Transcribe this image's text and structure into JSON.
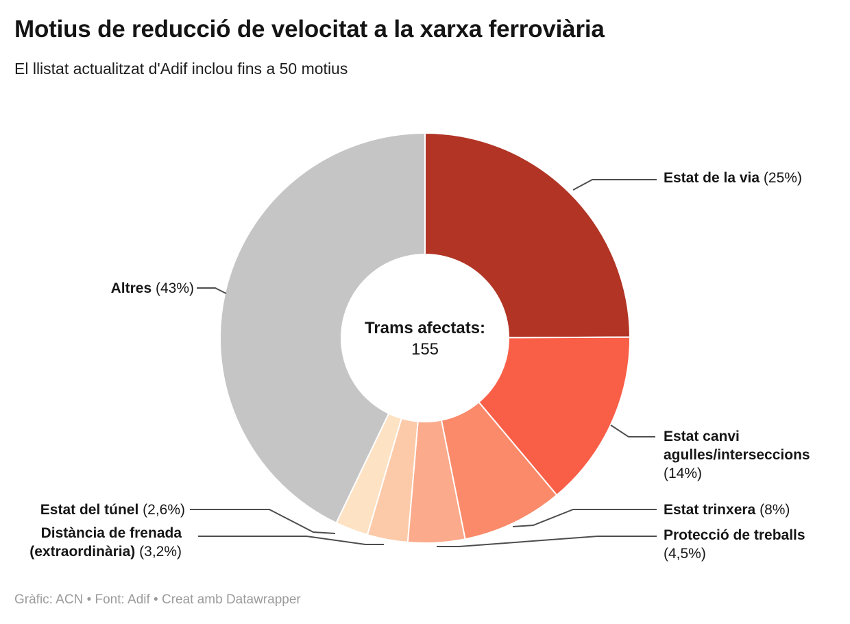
{
  "header": {
    "title": "Motius de reducció de velocitat a la xarxa ferroviària",
    "subtitle": "El llistat actualitzat d'Adif inclou fins a 50 motius"
  },
  "chart_data": {
    "type": "pie",
    "variant": "donut",
    "title": "Motius de reducció de velocitat a la xarxa ferroviària",
    "subtitle": "El llistat actualitzat d'Adif inclou fins a 50 motius",
    "center_label": "Trams afectats:",
    "center_value": "155",
    "units": "percent",
    "start_angle_deg": 0,
    "direction": "clockwise",
    "segments": [
      {
        "label": "Estat de la via",
        "pct_label": "(25%)",
        "value": 25,
        "color": "#b13425"
      },
      {
        "label": "Estat canvi agulles/interseccions",
        "pct_label": "(14%)",
        "value": 14,
        "color": "#f95e47"
      },
      {
        "label": "Estat trinxera",
        "pct_label": "(8%)",
        "value": 8,
        "color": "#fa8a6a"
      },
      {
        "label": "Protecció de treballs",
        "pct_label": "(4,5%)",
        "value": 4.5,
        "color": "#fbaa8c"
      },
      {
        "label": "Distància de frenada (extraordinària)",
        "pct_label": "(3,2%)",
        "value": 3.2,
        "color": "#fccaa8"
      },
      {
        "label": "Estat del túnel",
        "pct_label": "(2,6%)",
        "value": 2.6,
        "color": "#fde2c4"
      },
      {
        "label": "Altres",
        "pct_label": "(43%)",
        "value": 43,
        "color": "#c5c5c5"
      }
    ]
  },
  "footer": {
    "text": "Gràfic: ACN • Font: Adif • Creat amb Datawrapper"
  }
}
